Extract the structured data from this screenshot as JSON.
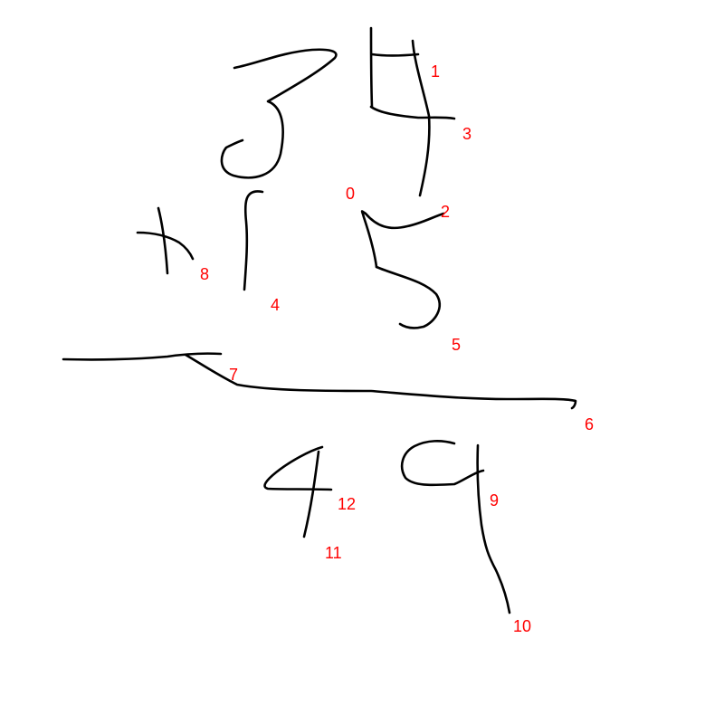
{
  "colors": {
    "background": "#ffffff",
    "stroke": "#000000",
    "label": "#ff0000"
  },
  "strokes": [
    {
      "id": "0",
      "label": "0",
      "shape": "top of digit 5 (hook and stem)"
    },
    {
      "id": "1",
      "label": "1",
      "shape": "left vertical of digit 4"
    },
    {
      "id": "2",
      "label": "2",
      "shape": "right descender of digit 4"
    },
    {
      "id": "3",
      "label": "3",
      "shape": "crossbar of digit 4"
    },
    {
      "id": "4",
      "label": "4",
      "shape": "digit 1"
    },
    {
      "id": "5",
      "label": "5",
      "shape": "bowl of digit 5"
    },
    {
      "id": "6",
      "label": "6",
      "shape": "long fraction bar"
    },
    {
      "id": "7",
      "label": "7",
      "shape": "left end of fraction bar"
    },
    {
      "id": "8",
      "label": "8",
      "shape": "plus sign"
    },
    {
      "id": "9",
      "label": "9",
      "shape": "loop of digit 9"
    },
    {
      "id": "10",
      "label": "10",
      "shape": "tail of digit 9"
    },
    {
      "id": "11",
      "label": "11",
      "shape": "stem of digit 4"
    },
    {
      "id": "12",
      "label": "12",
      "shape": "diagonal and crossbar of digit 4"
    }
  ]
}
